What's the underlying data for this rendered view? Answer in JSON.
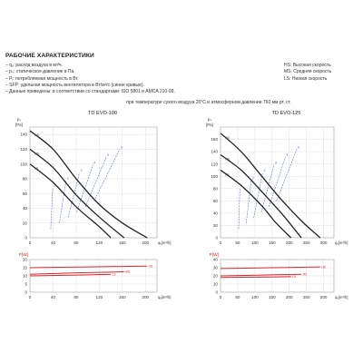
{
  "header": {
    "title": "РАБОЧИЕ ХАРАКТЕРИСТИКИ",
    "notes": [
      "– qᵥ: расход воздуха в м³/ч.",
      "– pₛ: статическое давление в Па.",
      "– Pᵢ: потребляемая мощность в Вт.",
      "– SFP: удельная мощность вентилятора в Вт/м³/с (синие кривые).",
      "– Данные приведены: в соответствии со стандартами: ISO 5801 и AMCA 210-99."
    ],
    "condition": "при температуре сухого воздуха 20°С и атмосферном давлении 760 мм рт. ст.",
    "speeds": [
      "HS: Высокая скорость",
      "MS: Средняя скорость",
      "LS: Низкая скорость"
    ]
  },
  "chart_data": [
    {
      "type": "line",
      "title": "TD EVO-100",
      "ylabel_top": "pₛ",
      "ylabel_unit": "[Pa]",
      "xlabel": "qᵥ[m³/h]",
      "xlim": [
        0,
        220
      ],
      "xticks": [
        0,
        40,
        80,
        120,
        160,
        200
      ],
      "ylim": [
        0,
        150
      ],
      "yticks": [
        0,
        20,
        40,
        60,
        80,
        100,
        120,
        140
      ],
      "series": [
        {
          "name": "HS",
          "x": [
            0,
            40,
            80,
            120,
            160,
            203
          ],
          "y": [
            145,
            120,
            80,
            45,
            20,
            0
          ]
        },
        {
          "name": "MS",
          "x": [
            0,
            40,
            80,
            120,
            163
          ],
          "y": [
            120,
            95,
            58,
            28,
            0
          ]
        },
        {
          "name": "LS",
          "x": [
            0,
            40,
            80,
            120,
            140
          ],
          "y": [
            100,
            75,
            42,
            15,
            0
          ]
        }
      ],
      "sfp_labels": [
        "1",
        "2",
        "3",
        "4",
        "5",
        "6"
      ],
      "power": {
        "ylabel": "P[W]",
        "ylim": [
          0,
          20
        ],
        "yticks": [
          0,
          5,
          10,
          15,
          20
        ],
        "series": [
          {
            "name": "HS",
            "x": [
              0,
              100,
              203
            ],
            "y": [
              15,
              15.5,
              16
            ]
          },
          {
            "name": "MS",
            "x": [
              0,
              100,
              163
            ],
            "y": [
              11,
              12,
              12.5
            ]
          },
          {
            "name": "LS",
            "x": [
              0,
              80,
              140
            ],
            "y": [
              10,
              10.5,
              11
            ]
          }
        ]
      }
    },
    {
      "type": "line",
      "title": "TD EVO-125",
      "ylabel_top": "pₛ",
      "ylabel_unit": "[Pa]",
      "xlabel": "qᵥ[m³/h]",
      "xlim": [
        0,
        330
      ],
      "xticks": [
        0,
        50,
        100,
        150,
        200,
        250,
        300
      ],
      "ylim": [
        0,
        180
      ],
      "yticks": [
        0,
        20,
        40,
        60,
        80,
        100,
        120,
        140,
        160
      ],
      "series": [
        {
          "name": "HS",
          "x": [
            0,
            60,
            120,
            180,
            240,
            290
          ],
          "y": [
            170,
            140,
            100,
            60,
            25,
            0
          ]
        },
        {
          "name": "MS",
          "x": [
            0,
            60,
            120,
            180,
            235
          ],
          "y": [
            135,
            110,
            75,
            38,
            0
          ]
        },
        {
          "name": "LS",
          "x": [
            0,
            60,
            120,
            160,
            205
          ],
          "y": [
            110,
            85,
            52,
            25,
            0
          ]
        }
      ],
      "sfp_labels": [
        "1",
        "2",
        "3",
        "4",
        "5",
        "6"
      ],
      "power": {
        "ylabel": "P[W]",
        "ylim": [
          0,
          40
        ],
        "yticks": [
          0,
          10,
          20,
          30,
          40
        ],
        "series": [
          {
            "name": "HS",
            "x": [
              0,
              150,
              290
            ],
            "y": [
              29,
              30,
              31
            ]
          },
          {
            "name": "MS",
            "x": [
              0,
              120,
              235
            ],
            "y": [
              20,
              21,
              22
            ]
          },
          {
            "name": "LS",
            "x": [
              0,
              100,
              205
            ],
            "y": [
              18,
              18.5,
              19
            ]
          }
        ]
      }
    }
  ],
  "colors": {
    "curve": "#222222",
    "sfp": "#4a6fd0",
    "power": "#d9262a",
    "grid": "#b8b8b8"
  }
}
